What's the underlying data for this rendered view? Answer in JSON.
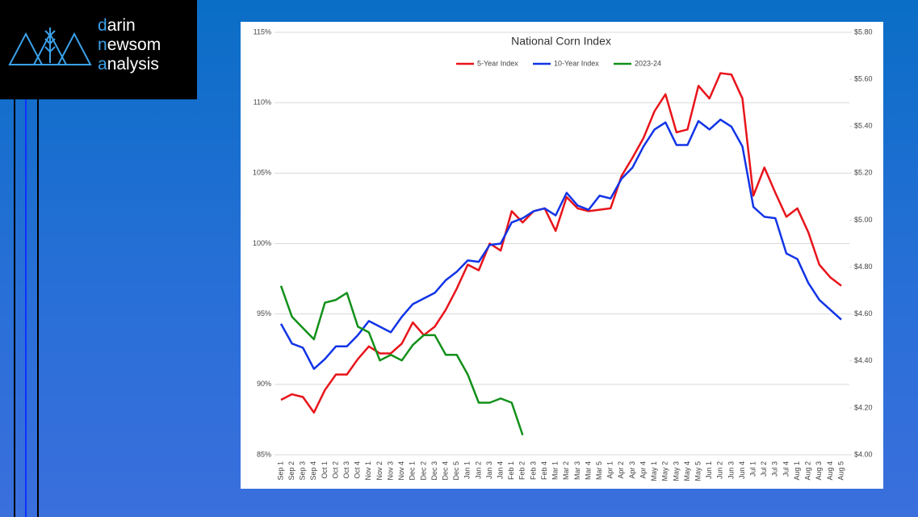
{
  "logo": {
    "lines": [
      "darin",
      "newsom",
      "analysis"
    ]
  },
  "chart_data": {
    "type": "line",
    "title": "National Corn Index",
    "categories": [
      "Sep 1",
      "Sep 2",
      "Sep 3",
      "Sep 4",
      "Oct 1",
      "Oct 2",
      "Oct 3",
      "Oct 4",
      "Nov 1",
      "Nov 2",
      "Nov 3",
      "Nov 4",
      "Dec 1",
      "Dec 2",
      "Dec 3",
      "Dec 4",
      "Dec 5",
      "Jan 1",
      "Jan 2",
      "Jan 3",
      "Jan 4",
      "Feb 1",
      "Feb 2",
      "Feb 3",
      "Feb 4",
      "Mar 1",
      "Mar 2",
      "Mar 3",
      "Mar 4",
      "Mar 5",
      "Apr 1",
      "Apr 2",
      "Apr 3",
      "Apr 4",
      "May 1",
      "May 2",
      "May 3",
      "May 4",
      "May 5",
      "Jun 1",
      "Jun 2",
      "Jun 3",
      "Jun 4",
      "Jul 1",
      "Jul 2",
      "Jul 3",
      "Jul 4",
      "Aug 1",
      "Aug 2",
      "Aug 3",
      "Aug 4",
      "Aug 5"
    ],
    "series": [
      {
        "name": "5-Year Index",
        "color": "#e8141b",
        "values": [
          88.9,
          89.3,
          89.1,
          88.0,
          89.6,
          90.7,
          90.7,
          91.8,
          92.7,
          92.2,
          92.2,
          92.9,
          94.4,
          93.5,
          94.1,
          95.3,
          96.8,
          98.5,
          98.1,
          100.0,
          99.5,
          102.3,
          101.5,
          102.3,
          102.5,
          100.9,
          103.3,
          102.5,
          102.3,
          102.4,
          102.5,
          104.8,
          106.1,
          107.5,
          109.4,
          110.6,
          107.9,
          108.1,
          111.2,
          110.3,
          112.1,
          112.0,
          110.3,
          103.4,
          105.4,
          103.6,
          101.9,
          102.5,
          100.8,
          98.5,
          97.6,
          97.0
        ]
      },
      {
        "name": "10-Year Index",
        "color": "#1234e6",
        "values": [
          94.3,
          92.9,
          92.6,
          91.1,
          91.8,
          92.7,
          92.7,
          93.5,
          94.5,
          94.1,
          93.7,
          94.8,
          95.7,
          96.1,
          96.5,
          97.4,
          98.0,
          98.8,
          98.7,
          99.9,
          100.0,
          101.5,
          101.8,
          102.3,
          102.5,
          102.0,
          103.6,
          102.7,
          102.4,
          103.4,
          103.2,
          104.6,
          105.4,
          106.9,
          108.1,
          108.6,
          107.0,
          107.0,
          108.7,
          108.1,
          108.8,
          108.3,
          106.9,
          102.6,
          101.9,
          101.8,
          99.3,
          98.9,
          97.2,
          96.0,
          95.3,
          94.6
        ]
      },
      {
        "name": "2023-24",
        "color": "#12901a",
        "values": [
          97.0,
          94.8,
          94.0,
          93.2,
          95.8,
          96.0,
          96.5,
          94.1,
          93.7,
          91.7,
          92.1,
          91.7,
          92.8,
          93.5,
          93.5,
          92.1,
          92.1,
          90.7,
          88.7,
          88.7,
          89.0,
          88.7,
          86.4,
          null,
          null,
          null,
          null,
          null,
          null,
          null,
          null,
          null,
          null,
          null,
          null,
          null,
          null,
          null,
          null,
          null,
          null,
          null,
          null,
          null,
          null,
          null,
          null,
          null,
          null,
          null,
          null,
          null
        ]
      }
    ],
    "ylim": [
      85,
      115
    ],
    "yticks": [
      {
        "value": 85,
        "label": "85%"
      },
      {
        "value": 90,
        "label": "90%"
      },
      {
        "value": 95,
        "label": "95%"
      },
      {
        "value": 100,
        "label": "100%"
      },
      {
        "value": 105,
        "label": "105%"
      },
      {
        "value": 110,
        "label": "110%"
      },
      {
        "value": 115,
        "label": "115%"
      }
    ],
    "y2lim": [
      4.0,
      5.8
    ],
    "y2ticks": [
      {
        "value": 4.0,
        "label": "$4.00"
      },
      {
        "value": 4.2,
        "label": "$4.20"
      },
      {
        "value": 4.4,
        "label": "$4.40"
      },
      {
        "value": 4.6,
        "label": "$4.60"
      },
      {
        "value": 4.8,
        "label": "$4.80"
      },
      {
        "value": 5.0,
        "label": "$5.00"
      },
      {
        "value": 5.2,
        "label": "$5.20"
      },
      {
        "value": 5.4,
        "label": "$5.40"
      },
      {
        "value": 5.6,
        "label": "$5.60"
      },
      {
        "value": 5.8,
        "label": "$5.80"
      }
    ],
    "grid": true,
    "legend": "top"
  }
}
